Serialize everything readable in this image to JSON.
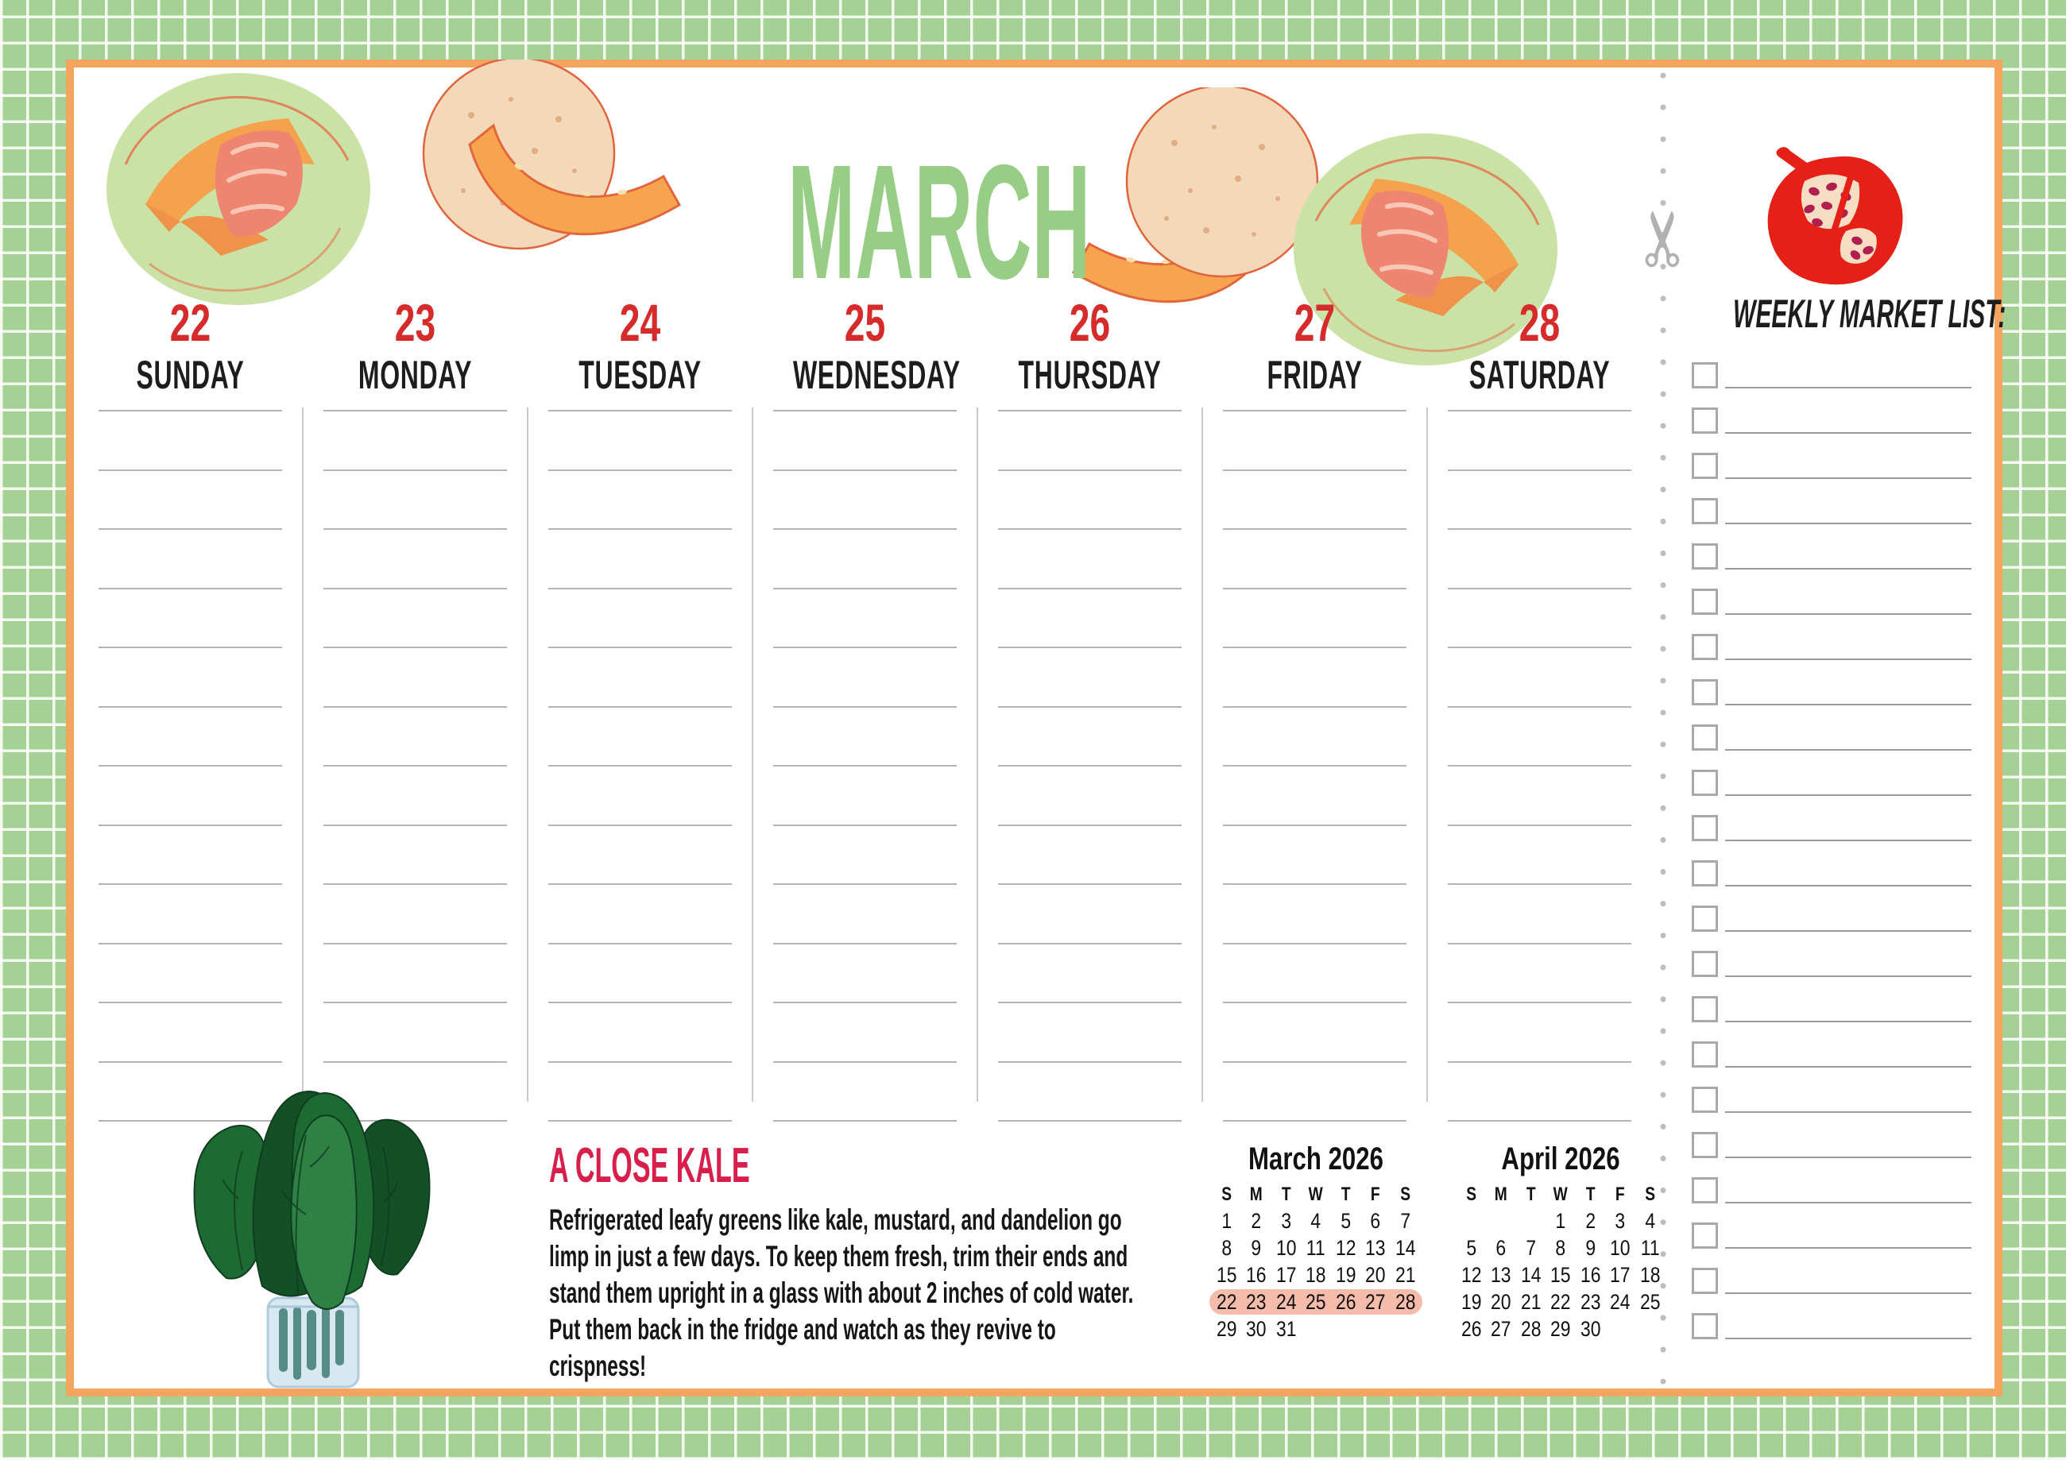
{
  "planner": {
    "month_title": "MARCH",
    "week": {
      "days": [
        {
          "number": "22",
          "name": "SUNDAY"
        },
        {
          "number": "23",
          "name": "MONDAY"
        },
        {
          "number": "24",
          "name": "TUESDAY"
        },
        {
          "number": "25",
          "name": "WEDNESDAY"
        },
        {
          "number": "26",
          "name": "THURSDAY"
        },
        {
          "number": "27",
          "name": "FRIDAY"
        },
        {
          "number": "28",
          "name": "SATURDAY"
        }
      ],
      "ruled_lines_per_day": 13
    },
    "tip": {
      "title": "A CLOSE KALE",
      "body": "Refrigerated leafy greens like kale, mustard, and dandelion go limp in just a few days. To keep them fresh, trim their ends and stand them upright in a glass with about 2 inches of cold water. Put them back in the fridge and watch as they revive to crispness!"
    },
    "mini_calendars": [
      {
        "title": "March 2026",
        "day_letters": [
          "S",
          "M",
          "T",
          "W",
          "T",
          "F",
          "S"
        ],
        "weeks": [
          [
            "1",
            "2",
            "3",
            "4",
            "5",
            "6",
            "7"
          ],
          [
            "8",
            "9",
            "10",
            "11",
            "12",
            "13",
            "14"
          ],
          [
            "15",
            "16",
            "17",
            "18",
            "19",
            "20",
            "21"
          ],
          [
            "22",
            "23",
            "24",
            "25",
            "26",
            "27",
            "28"
          ],
          [
            "29",
            "30",
            "31",
            "",
            "",
            "",
            ""
          ]
        ],
        "highlight_week": 3
      },
      {
        "title": "April 2026",
        "day_letters": [
          "S",
          "M",
          "T",
          "W",
          "T",
          "F",
          "S"
        ],
        "weeks": [
          [
            "",
            "",
            "",
            "1",
            "2",
            "3",
            "4"
          ],
          [
            "5",
            "6",
            "7",
            "8",
            "9",
            "10",
            "11"
          ],
          [
            "12",
            "13",
            "14",
            "15",
            "16",
            "17",
            "18"
          ],
          [
            "19",
            "20",
            "21",
            "22",
            "23",
            "24",
            "25"
          ],
          [
            "26",
            "27",
            "28",
            "29",
            "30",
            "",
            ""
          ]
        ],
        "highlight_week": null
      }
    ],
    "market_list": {
      "title": "WEEKLY MARKET LIST:",
      "item_count": 22
    },
    "icons": {
      "scissors_glyph": "✂"
    },
    "colors": {
      "plaid_green": "#a6d194",
      "border_orange": "#f5a55f",
      "month_green": "#97cd84",
      "date_red": "#d62b2b",
      "tip_pink": "#d81e4a",
      "highlight_salmon": "#f6bcab"
    }
  }
}
